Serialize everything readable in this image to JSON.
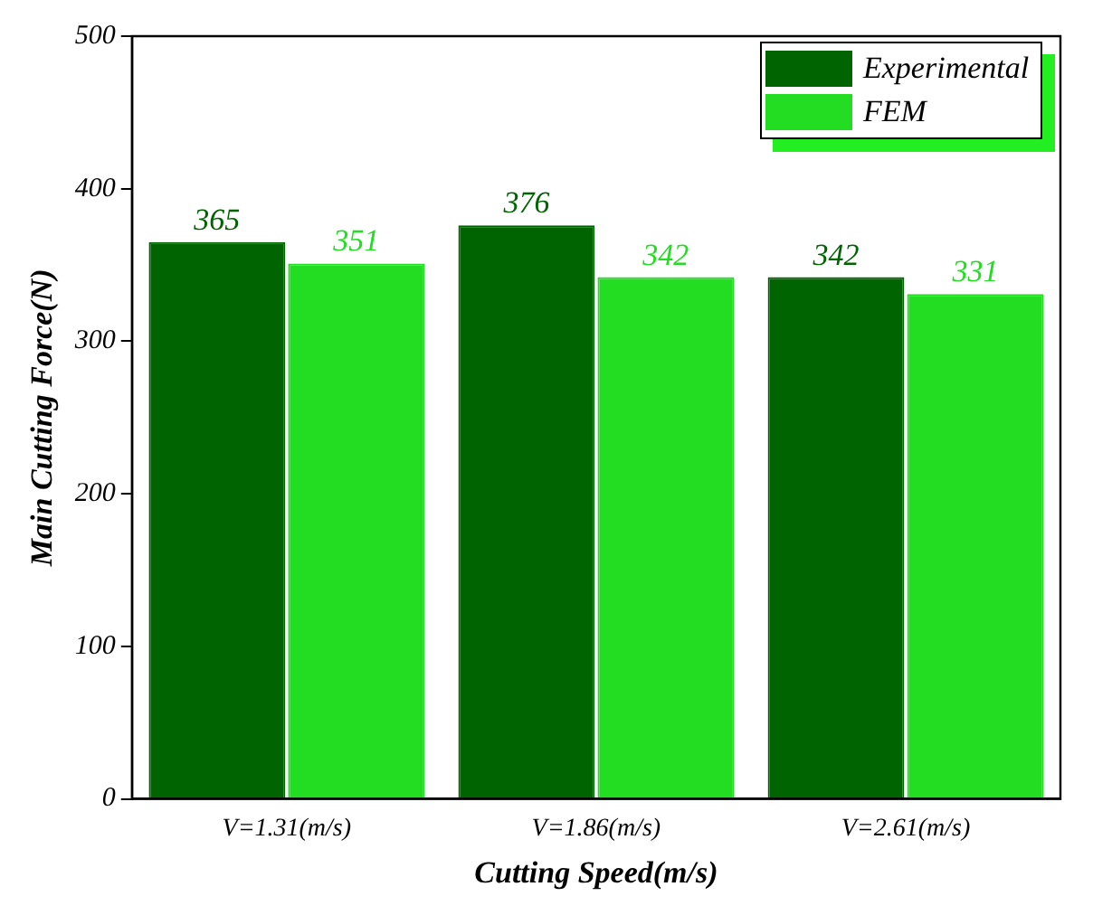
{
  "chart_data": {
    "type": "bar",
    "xlabel": "Cutting Speed(m/s)",
    "ylabel": "Main Cutting Force(N)",
    "categories": [
      "V=1.31(m/s)",
      "V=1.86(m/s)",
      "V=2.61(m/s)"
    ],
    "series": [
      {
        "name": "Experimental",
        "color": "#006400",
        "values": [
          365,
          376,
          342
        ]
      },
      {
        "name": "FEM",
        "color": "#22dd22",
        "values": [
          351,
          342,
          331
        ]
      }
    ],
    "ylim": [
      0,
      500
    ],
    "yticks": [
      0,
      100,
      200,
      300,
      400,
      500
    ],
    "grid": false,
    "legend": "top right",
    "data_labels": true
  }
}
